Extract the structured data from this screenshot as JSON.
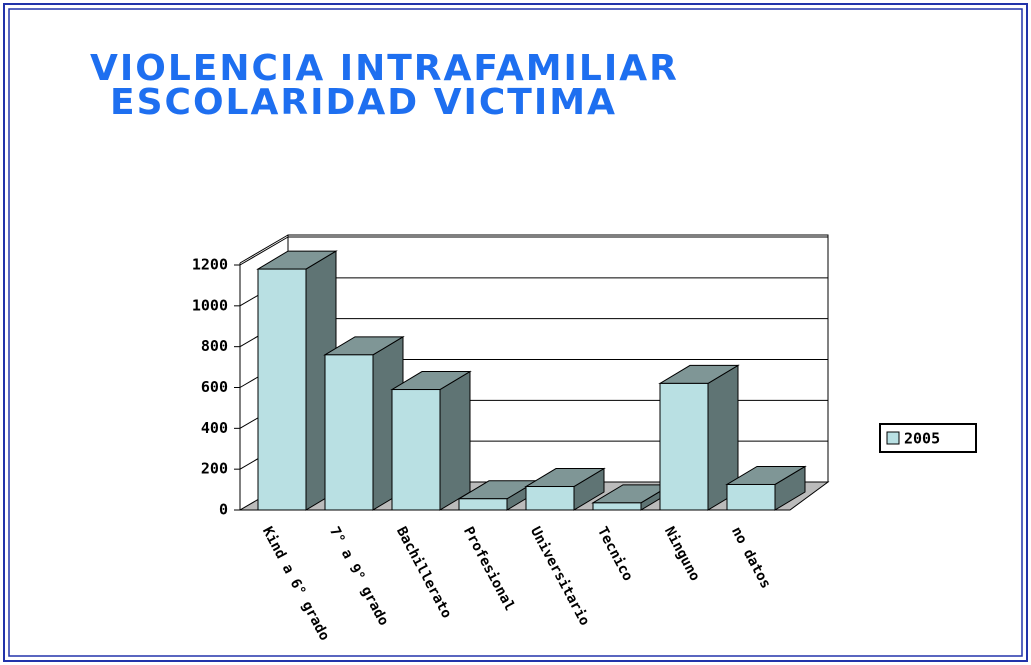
{
  "chart_data": {
    "type": "bar3d",
    "title": "VIOLENCIA INTRAFAMILIAR",
    "subtitle": "ESCOLARIDAD VICTIMA",
    "categories": [
      "Kind a 6° grado",
      "7° a 9° grado",
      "Bachillerato",
      "Profesional",
      "Universitario",
      "Tecnico",
      "Ninguno",
      "no datos"
    ],
    "series": [
      {
        "name": "2005",
        "color": "#b9e0e3",
        "values": [
          1180,
          760,
          590,
          55,
          115,
          35,
          620,
          125
        ]
      }
    ],
    "ylim": [
      0,
      1200
    ],
    "yticks": [
      0,
      200,
      400,
      600,
      800,
      1000,
      1200
    ],
    "grid": true,
    "legend": "right"
  }
}
